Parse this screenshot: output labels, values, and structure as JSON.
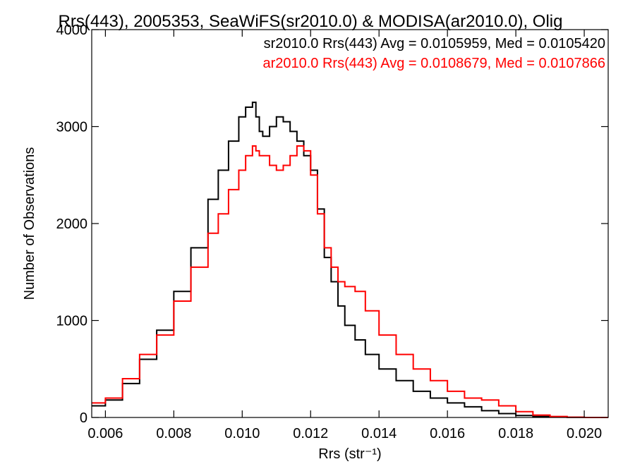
{
  "chart_data": {
    "type": "line",
    "step": true,
    "title": "Rrs(443), 2005353, SeaWiFS(sr2010.0) & MODISA(ar2010.0), Olig",
    "xlabel": "Rrs (str⁻¹)",
    "ylabel": "Number of Observations",
    "xlim": [
      0.0056,
      0.0207
    ],
    "ylim": [
      0,
      4000
    ],
    "xticks": [
      0.006,
      0.008,
      0.01,
      0.012,
      0.014,
      0.016,
      0.018,
      0.02
    ],
    "xtick_labels": [
      "0.006",
      "0.008",
      "0.010",
      "0.012",
      "0.014",
      "0.016",
      "0.018",
      "0.020"
    ],
    "yticks": [
      0,
      1000,
      2000,
      3000,
      4000
    ],
    "ytick_labels": [
      "0",
      "1000",
      "2000",
      "3000",
      "4000"
    ],
    "legend_position": "top-right",
    "legend": [
      "sr2010.0 Rrs(443) Avg = 0.0105959, Med = 0.0105420",
      "ar2010.0 Rrs(443) Avg = 0.0108679, Med = 0.0107866"
    ],
    "series": [
      {
        "color": "#000000",
        "x": [
          0.0056,
          0.006,
          0.0065,
          0.007,
          0.0075,
          0.008,
          0.0085,
          0.009,
          0.0093,
          0.0096,
          0.0099,
          0.0101,
          0.0103,
          0.0104,
          0.0105,
          0.0106,
          0.0108,
          0.011,
          0.0112,
          0.0114,
          0.0116,
          0.0118,
          0.012,
          0.0122,
          0.0124,
          0.0126,
          0.0128,
          0.013,
          0.0133,
          0.0136,
          0.014,
          0.0145,
          0.015,
          0.0155,
          0.016,
          0.0165,
          0.017,
          0.0175,
          0.018,
          0.0185,
          0.019,
          0.0195,
          0.02,
          0.0207
        ],
        "values": [
          120,
          180,
          350,
          600,
          900,
          1300,
          1750,
          2250,
          2550,
          2850,
          3100,
          3200,
          3250,
          3100,
          2950,
          2900,
          3000,
          3100,
          3050,
          2950,
          2850,
          2700,
          2550,
          2150,
          1650,
          1400,
          1150,
          950,
          800,
          650,
          500,
          380,
          270,
          200,
          150,
          110,
          70,
          40,
          20,
          10,
          5,
          2,
          0,
          0
        ]
      },
      {
        "color": "#ff0000",
        "x": [
          0.0056,
          0.006,
          0.0065,
          0.007,
          0.0075,
          0.008,
          0.0085,
          0.009,
          0.0093,
          0.0096,
          0.0099,
          0.0101,
          0.0103,
          0.0104,
          0.0105,
          0.0106,
          0.0108,
          0.011,
          0.0112,
          0.0114,
          0.0116,
          0.0118,
          0.012,
          0.0122,
          0.0124,
          0.0126,
          0.0128,
          0.013,
          0.0133,
          0.0136,
          0.014,
          0.0145,
          0.015,
          0.0155,
          0.016,
          0.0165,
          0.017,
          0.0175,
          0.018,
          0.0185,
          0.019,
          0.0195,
          0.02,
          0.0207
        ],
        "values": [
          150,
          200,
          400,
          650,
          850,
          1200,
          1550,
          1900,
          2100,
          2350,
          2550,
          2700,
          2800,
          2750,
          2700,
          2700,
          2600,
          2550,
          2600,
          2700,
          2800,
          2750,
          2500,
          2100,
          1750,
          1550,
          1400,
          1350,
          1300,
          1100,
          850,
          650,
          500,
          380,
          270,
          200,
          180,
          120,
          60,
          25,
          10,
          3,
          0,
          0
        ]
      }
    ]
  }
}
